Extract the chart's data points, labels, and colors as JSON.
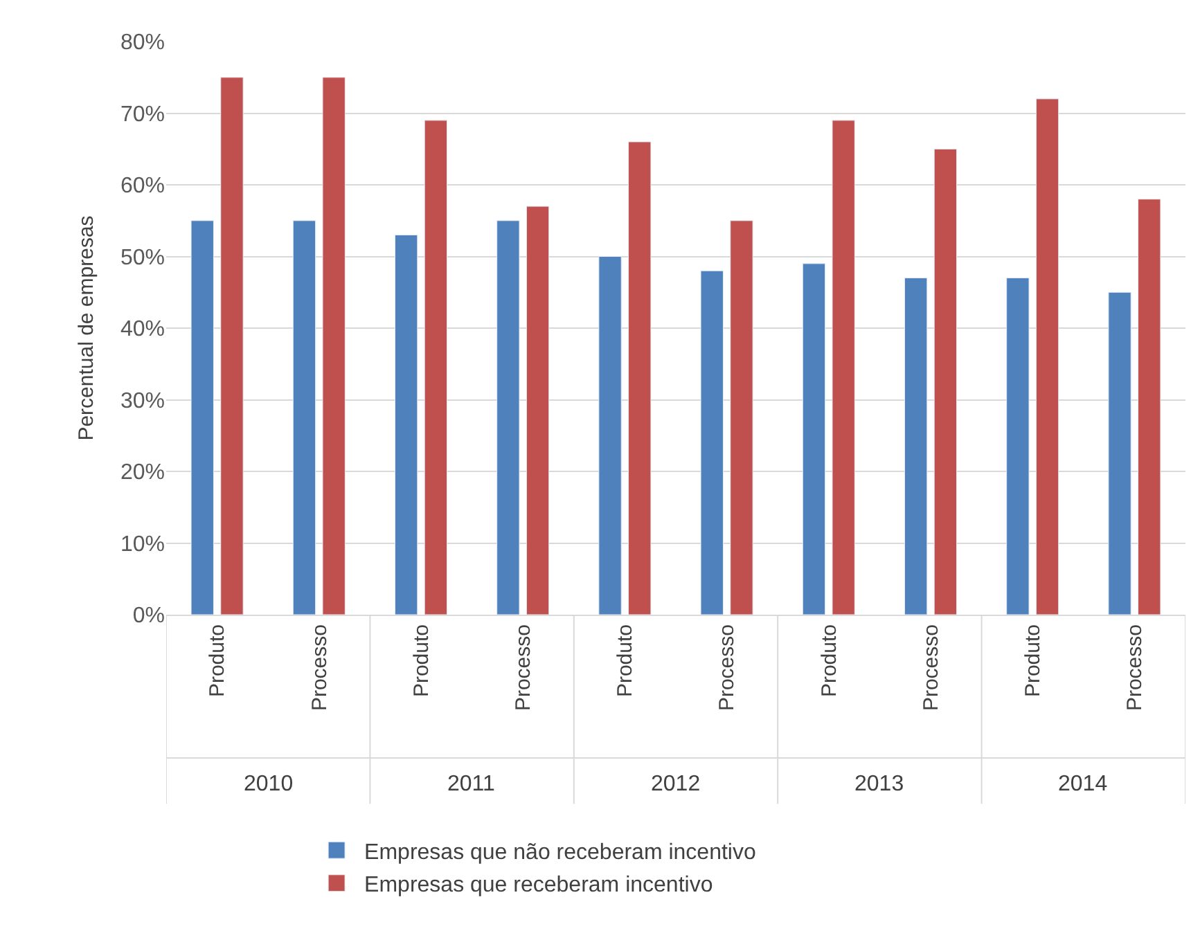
{
  "chart_data": {
    "type": "bar",
    "ylabel": "Percentual de empresas",
    "categories": [
      "Produto",
      "Processo",
      "Produto",
      "Processo",
      "Produto",
      "Processo",
      "Produto",
      "Processo",
      "Produto",
      "Processo"
    ],
    "annotations": [
      "2010",
      "2011",
      "2012",
      "2013",
      "2014"
    ],
    "series": [
      {
        "name": "Empresas que não receberam incentivo",
        "color": "#4f81bd",
        "values": [
          55,
          55,
          53,
          55,
          50,
          48,
          49,
          47,
          47,
          45
        ]
      },
      {
        "name": "Empresas que receberam incentivo",
        "color": "#c0504d",
        "values": [
          75,
          75,
          69,
          57,
          66,
          55,
          69,
          65,
          72,
          58
        ]
      }
    ],
    "ylim": [
      0,
      80
    ],
    "yticks": [
      {
        "value": 0,
        "label": "0%"
      },
      {
        "value": 10,
        "label": "10%"
      },
      {
        "value": 20,
        "label": "20%"
      },
      {
        "value": 30,
        "label": "30%"
      },
      {
        "value": 40,
        "label": "40%"
      },
      {
        "value": 50,
        "label": "50%"
      },
      {
        "value": 60,
        "label": "60%"
      },
      {
        "value": 70,
        "label": "70%"
      },
      {
        "value": 80,
        "label": "80%"
      }
    ],
    "grid": "y",
    "legend": "bottom"
  }
}
